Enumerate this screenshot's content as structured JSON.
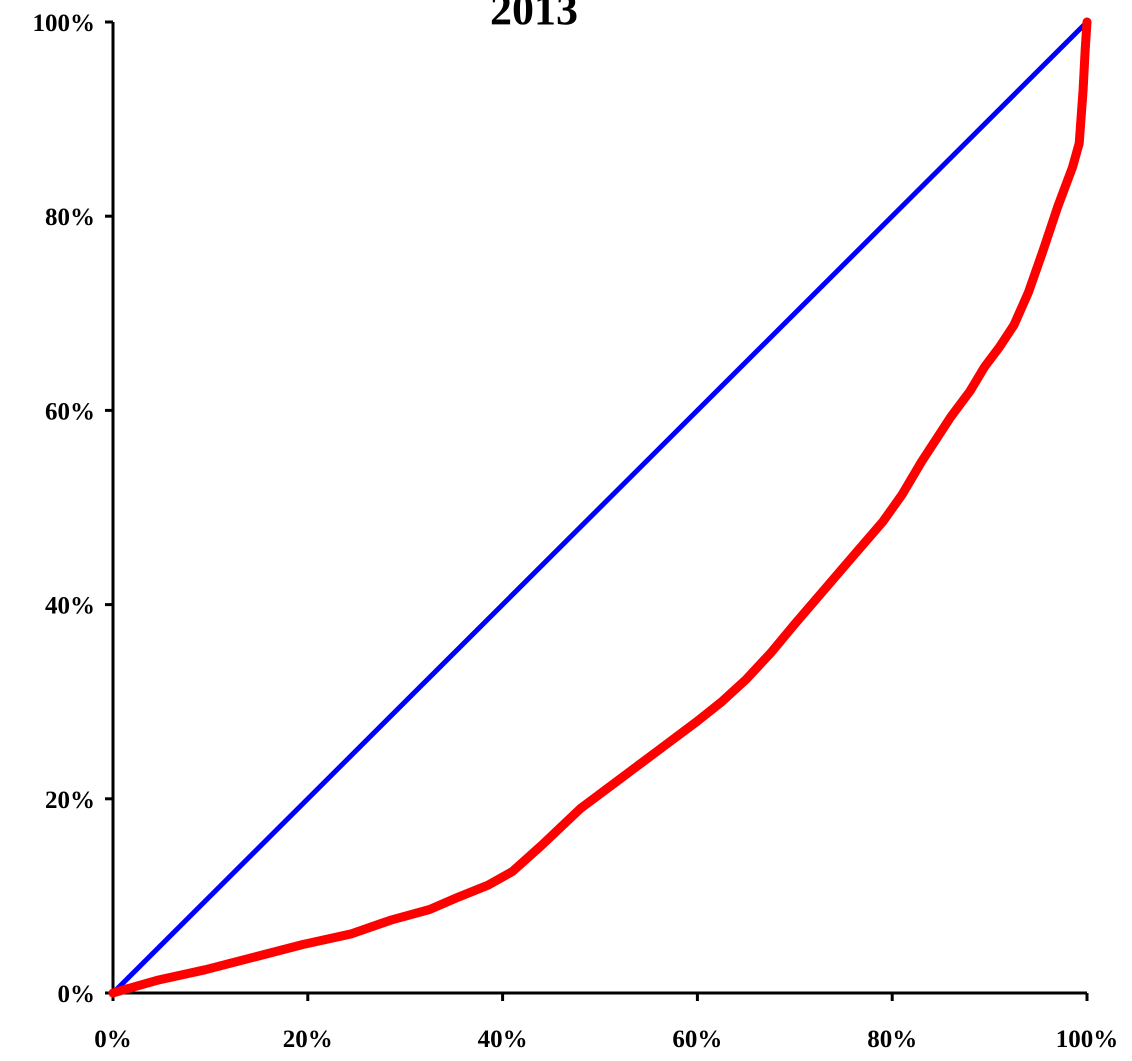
{
  "chart_data": {
    "type": "line",
    "title": "2013",
    "xlabel": "",
    "ylabel": "",
    "xlim": [
      0,
      100
    ],
    "ylim": [
      0,
      100
    ],
    "x_ticks": [
      "0%",
      "20%",
      "40%",
      "60%",
      "80%",
      "100%"
    ],
    "y_ticks": [
      "0%",
      "20%",
      "40%",
      "60%",
      "80%",
      "100%"
    ],
    "x_tick_values": [
      0,
      20,
      40,
      60,
      80,
      100
    ],
    "y_tick_values": [
      0,
      20,
      40,
      60,
      80,
      100
    ],
    "grid": false,
    "legend": "none",
    "series": [
      {
        "color": "#0000ff",
        "x": [
          0,
          100
        ],
        "y": [
          0,
          100
        ]
      },
      {
        "color": "#ff0000",
        "x": [
          0,
          1,
          4.5,
          9.5,
          14.5,
          19.5,
          24.5,
          28.5,
          32.5,
          35.5,
          38.5,
          41,
          44,
          48,
          52,
          56,
          60,
          62.5,
          65,
          67.5,
          70,
          73,
          76,
          79,
          81,
          83,
          86,
          88,
          89.5,
          91,
          92.5,
          94,
          95.5,
          97,
          98.5,
          99.2,
          99.6,
          99.8,
          100
        ],
        "y": [
          0,
          0.3,
          1.3,
          2.4,
          3.7,
          5,
          6.1,
          7.5,
          8.6,
          9.9,
          11.1,
          12.5,
          15.2,
          19,
          22,
          25,
          28,
          30,
          32.3,
          35,
          38,
          41.5,
          45,
          48.5,
          51.3,
          54.7,
          59.3,
          62,
          64.5,
          66.5,
          68.8,
          72.2,
          76.5,
          81,
          85,
          87.5,
          93,
          97,
          100
        ]
      }
    ]
  }
}
